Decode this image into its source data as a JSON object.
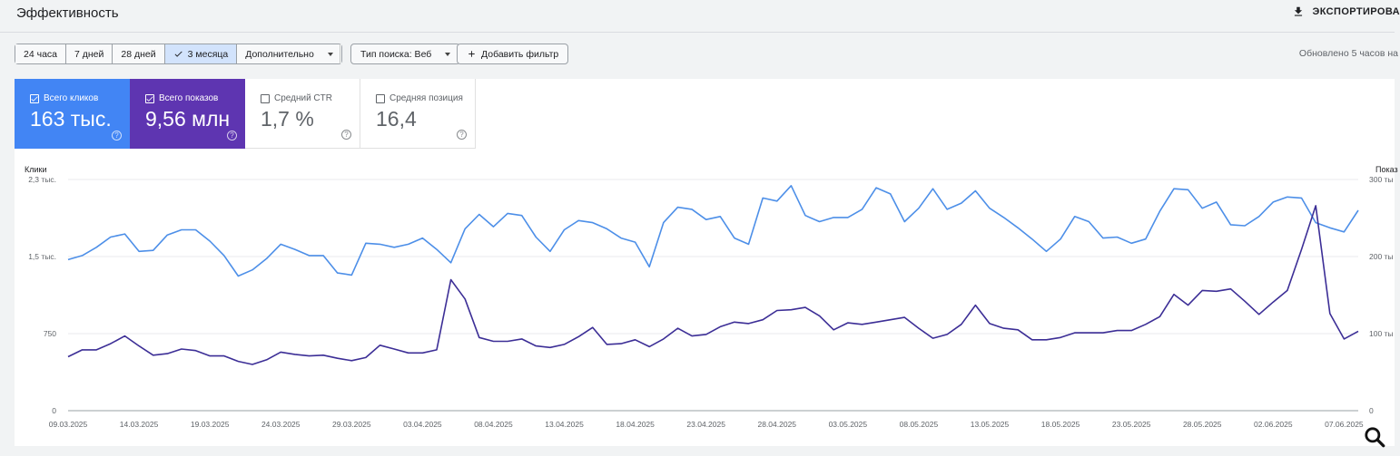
{
  "header": {
    "title": "Эффективность",
    "export_label": "ЭКСПОРТИРОВА",
    "export_icon": "download-icon"
  },
  "filters": {
    "ranges": [
      {
        "label": "24 часа",
        "active": false
      },
      {
        "label": "7 дней",
        "active": false
      },
      {
        "label": "28 дней",
        "active": false
      },
      {
        "label": "3 месяца",
        "active": true
      },
      {
        "label": "Дополнительно",
        "active": false
      }
    ],
    "search_type": "Тип поиска: Веб",
    "add_filter": "Добавить фильтр",
    "updated": "Обновлено 5 часов на"
  },
  "metrics": {
    "clicks": {
      "label": "Всего кликов",
      "value": "163 тыс.",
      "checked": true,
      "color": "#4285f4"
    },
    "impressions": {
      "label": "Всего показов",
      "value": "9,56 млн",
      "checked": true,
      "color": "#5e35b1"
    },
    "ctr": {
      "label": "Средний CTR",
      "value": "1,7 %",
      "checked": false
    },
    "position": {
      "label": "Средняя позиция",
      "value": "16,4",
      "checked": false
    }
  },
  "chart_data": {
    "type": "line",
    "left_axis_title": "Клики",
    "right_axis_title": "Показ",
    "left_ticks": [
      "2,3 тыс.",
      "1,5 тыс.",
      "750",
      "0"
    ],
    "right_ticks": [
      "300 ты",
      "200 ты",
      "100 ты",
      "0"
    ],
    "left_ylim": [
      0,
      2250
    ],
    "right_ylim": [
      0,
      300
    ],
    "x_labels": [
      "09.03.2025",
      "14.03.2025",
      "19.03.2025",
      "24.03.2025",
      "29.03.2025",
      "03.04.2025",
      "08.04.2025",
      "13.04.2025",
      "18.04.2025",
      "23.04.2025",
      "28.04.2025",
      "03.05.2025",
      "08.05.2025",
      "13.05.2025",
      "18.05.2025",
      "23.05.2025",
      "28.05.2025",
      "02.06.2025",
      "07.06.2025"
    ],
    "x_label_index": [
      0,
      5,
      10,
      15,
      20,
      25,
      30,
      35,
      40,
      45,
      50,
      55,
      60,
      65,
      70,
      75,
      80,
      85,
      90
    ],
    "series": [
      {
        "name": "Всего кликов",
        "axis": "left",
        "color": "#4d8fe8",
        "values": [
          1470,
          1510,
          1590,
          1690,
          1720,
          1550,
          1560,
          1710,
          1760,
          1760,
          1650,
          1510,
          1310,
          1370,
          1480,
          1620,
          1570,
          1510,
          1510,
          1340,
          1320,
          1630,
          1620,
          1590,
          1620,
          1680,
          1570,
          1440,
          1770,
          1910,
          1790,
          1920,
          1900,
          1690,
          1550,
          1760,
          1850,
          1830,
          1770,
          1680,
          1640,
          1400,
          1830,
          1980,
          1960,
          1860,
          1890,
          1680,
          1620,
          2070,
          2040,
          2190,
          1900,
          1840,
          1880,
          1880,
          1960,
          2170,
          2110,
          1840,
          1970,
          2160,
          1960,
          2020,
          2140,
          1970,
          1880,
          1780,
          1670,
          1550,
          1670,
          1890,
          1840,
          1680,
          1690,
          1630,
          1670,
          1940,
          2160,
          2150,
          1970,
          2030,
          1810,
          1800,
          1890,
          2030,
          2080,
          2070,
          1830,
          1780,
          1740,
          1950
        ]
      },
      {
        "name": "Всего показов",
        "axis": "right",
        "color": "#3c2e96",
        "values": [
          70,
          79,
          79,
          87,
          97,
          84,
          72,
          74,
          80,
          78,
          71,
          71,
          64,
          60,
          66,
          76,
          73,
          71,
          72,
          68,
          65,
          69,
          85,
          80,
          75,
          75,
          79,
          170,
          145,
          95,
          90,
          90,
          93,
          84,
          82,
          86,
          96,
          108,
          86,
          87,
          92,
          83,
          93,
          107,
          97,
          99,
          109,
          115,
          113,
          118,
          130,
          131,
          134,
          123,
          105,
          114,
          112,
          115,
          118,
          121,
          107,
          94,
          99,
          112,
          137,
          113,
          107,
          105,
          92,
          92,
          95,
          101,
          101,
          101,
          104,
          104,
          112,
          122,
          151,
          137,
          156,
          155,
          158,
          142,
          125,
          141,
          156,
          209,
          266,
          126,
          93,
          103
        ]
      }
    ],
    "grid": true
  },
  "zoom_icon": "magnifier-icon"
}
